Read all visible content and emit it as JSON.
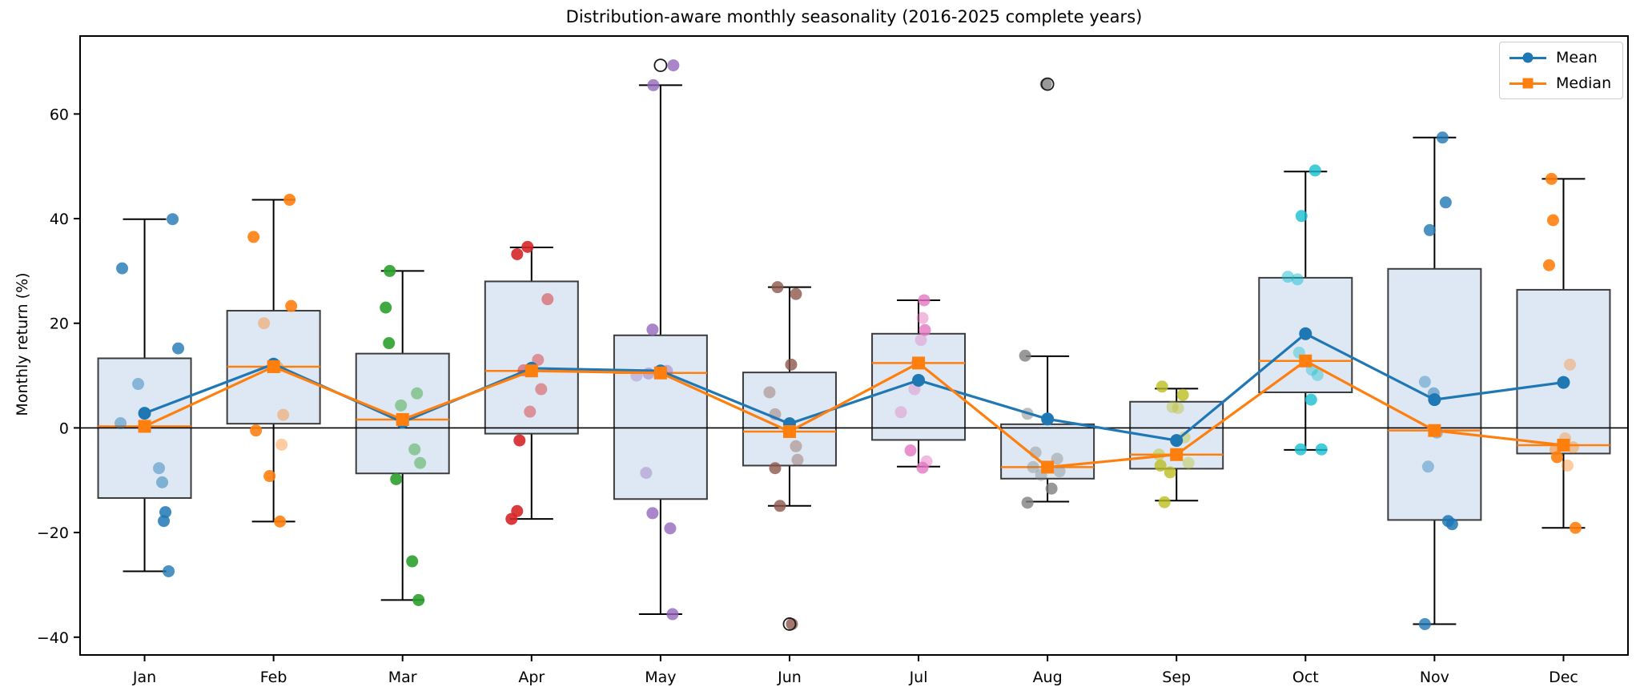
{
  "chart_data": {
    "type": "boxplot-with-line-overlays",
    "title": "Distribution-aware monthly seasonality (2016-2025 complete years)",
    "ylabel": "Monthly return (%)",
    "xlabel": "",
    "categories": [
      "Jan",
      "Feb",
      "Mar",
      "Apr",
      "May",
      "Jun",
      "Jul",
      "Aug",
      "Sep",
      "Oct",
      "Nov",
      "Dec"
    ],
    "yticks": [
      -40,
      -20,
      0,
      20,
      40,
      60
    ],
    "ylim": [
      -43.4,
      74.9
    ],
    "zero_line": 0,
    "grid": false,
    "legend_position": "upper right",
    "colors": {
      "mean": "#1f77b4",
      "median": "#ff7f0e",
      "box_fill": "#dde8f4",
      "box_edge": "#3c3c3c",
      "whisker": "#000000",
      "flier_edge": "#1a1a1a",
      "axis": "#000000",
      "month_points": [
        "#1f77b4",
        "#ff7f0e",
        "#2ca02c",
        "#d62728",
        "#9467bd",
        "#8c564b",
        "#e377c2",
        "#7f7f7f",
        "#bcbd22",
        "#17becf",
        "#1f77b4",
        "#ff7f0e"
      ]
    },
    "series": [
      {
        "name": "Mean",
        "marker": "circle",
        "color": "#1f77b4",
        "values": [
          2.8,
          12.2,
          1.1,
          11.4,
          10.9,
          0.8,
          9.1,
          1.7,
          -2.4,
          18.0,
          5.4,
          8.7
        ]
      },
      {
        "name": "Median",
        "marker": "square",
        "color": "#ff7f0e",
        "values": [
          0.3,
          11.7,
          1.6,
          10.9,
          10.5,
          -0.7,
          12.4,
          -7.5,
          -5.1,
          12.8,
          -0.5,
          -3.3
        ]
      }
    ],
    "boxes": [
      {
        "month": "Jan",
        "whislo": -27.4,
        "q1": -13.4,
        "med": 0.3,
        "q3": 13.3,
        "whishi": 39.9,
        "fliers": [],
        "points": [
          [
            35,
            39.9,
            0.8
          ],
          [
            -28,
            30.5,
            0.8
          ],
          [
            42,
            15.2,
            0.8
          ],
          [
            -8,
            8.4,
            0.45
          ],
          [
            -30,
            0.9,
            0.45
          ],
          [
            18,
            -7.7,
            0.45
          ],
          [
            22,
            -10.4,
            0.5
          ],
          [
            26,
            -16.1,
            0.85
          ],
          [
            24,
            -17.8,
            0.85
          ],
          [
            30,
            -27.4,
            0.8
          ]
        ]
      },
      {
        "month": "Feb",
        "whislo": -17.9,
        "q1": 0.8,
        "med": 11.7,
        "q3": 22.4,
        "whishi": 43.6,
        "fliers": [],
        "points": [
          [
            20,
            43.6,
            0.9
          ],
          [
            -25,
            36.5,
            0.9
          ],
          [
            22,
            23.3,
            0.9
          ],
          [
            -12,
            20.0,
            0.4
          ],
          [
            5,
            11.6,
            0.5
          ],
          [
            12,
            2.5,
            0.4
          ],
          [
            -22,
            -0.5,
            0.9
          ],
          [
            10,
            -3.2,
            0.4
          ],
          [
            -5,
            -9.2,
            0.9
          ],
          [
            8,
            -17.9,
            0.9
          ]
        ]
      },
      {
        "month": "Mar",
        "whislo": -32.9,
        "q1": -8.7,
        "med": 1.6,
        "q3": 14.2,
        "whishi": 30.0,
        "fliers": [],
        "points": [
          [
            -16,
            30.0,
            0.9
          ],
          [
            -21,
            23.0,
            0.9
          ],
          [
            -17,
            16.2,
            0.9
          ],
          [
            18,
            6.6,
            0.45
          ],
          [
            -2,
            4.3,
            0.45
          ],
          [
            15,
            -4.1,
            0.45
          ],
          [
            22,
            -6.7,
            0.45
          ],
          [
            -8,
            -9.8,
            0.9
          ],
          [
            12,
            -25.5,
            0.9
          ],
          [
            20,
            -32.9,
            0.9
          ]
        ]
      },
      {
        "month": "Apr",
        "whislo": -17.4,
        "q1": -1.1,
        "med": 10.9,
        "q3": 28.0,
        "whishi": 34.5,
        "fliers": [],
        "points": [
          [
            -5,
            34.6,
            0.9
          ],
          [
            -18,
            33.2,
            0.9
          ],
          [
            20,
            24.6,
            0.5
          ],
          [
            8,
            13.0,
            0.45
          ],
          [
            -10,
            11.0,
            0.5
          ],
          [
            12,
            7.4,
            0.45
          ],
          [
            -2,
            3.1,
            0.45
          ],
          [
            -15,
            -2.4,
            0.9
          ],
          [
            -18,
            -15.9,
            0.9
          ],
          [
            -25,
            -17.4,
            0.9
          ]
        ]
      },
      {
        "month": "May",
        "whislo": -35.6,
        "q1": -13.6,
        "med": 10.5,
        "q3": 17.7,
        "whishi": 65.5,
        "fliers": [
          69.3
        ],
        "points": [
          [
            16,
            69.3,
            0.8
          ],
          [
            -9,
            65.5,
            0.8
          ],
          [
            -10,
            18.8,
            0.8
          ],
          [
            8,
            10.9,
            0.45
          ],
          [
            -15,
            10.4,
            0.45
          ],
          [
            -30,
            10.0,
            0.35
          ],
          [
            -18,
            -8.6,
            0.4
          ],
          [
            -10,
            -16.3,
            0.8
          ],
          [
            12,
            -19.2,
            0.8
          ],
          [
            15,
            -35.6,
            0.8
          ]
        ]
      },
      {
        "month": "Jun",
        "whislo": -14.9,
        "q1": -7.2,
        "med": -0.7,
        "q3": 10.6,
        "whishi": 26.9,
        "fliers": [
          -37.5
        ],
        "points": [
          [
            -15,
            26.9,
            0.8
          ],
          [
            8,
            25.6,
            0.8
          ],
          [
            2,
            12.1,
            0.8
          ],
          [
            -25,
            6.8,
            0.4
          ],
          [
            -18,
            2.6,
            0.4
          ],
          [
            8,
            -3.5,
            0.4
          ],
          [
            10,
            -6.1,
            0.4
          ],
          [
            -18,
            -7.7,
            0.8
          ],
          [
            -12,
            -14.9,
            0.8
          ],
          [
            3,
            -37.5,
            0.8
          ]
        ]
      },
      {
        "month": "Jul",
        "whislo": -7.4,
        "q1": -2.3,
        "med": 12.4,
        "q3": 18.0,
        "whishi": 24.4,
        "fliers": [],
        "points": [
          [
            7,
            24.4,
            0.8
          ],
          [
            5,
            21.0,
            0.5
          ],
          [
            8,
            18.7,
            0.8
          ],
          [
            3,
            16.8,
            0.4
          ],
          [
            -2,
            12.4,
            0.5
          ],
          [
            -5,
            7.4,
            0.4
          ],
          [
            -22,
            3.0,
            0.4
          ],
          [
            -10,
            -4.3,
            0.8
          ],
          [
            10,
            -6.4,
            0.5
          ],
          [
            5,
            -7.6,
            0.8
          ]
        ]
      },
      {
        "month": "Aug",
        "whislo": -14.1,
        "q1": -9.7,
        "med": -7.5,
        "q3": 0.7,
        "whishi": 13.7,
        "fliers": [
          65.7
        ],
        "points": [
          [
            -2,
            65.7,
            0.8
          ],
          [
            -28,
            13.8,
            0.8
          ],
          [
            -25,
            2.7,
            0.5
          ],
          [
            -15,
            -4.7,
            0.4
          ],
          [
            12,
            -5.9,
            0.4
          ],
          [
            -18,
            -7.5,
            0.4
          ],
          [
            15,
            -8.3,
            0.4
          ],
          [
            -8,
            -9.0,
            0.4
          ],
          [
            5,
            -11.6,
            0.8
          ],
          [
            -25,
            -14.3,
            0.8
          ]
        ]
      },
      {
        "month": "Sep",
        "whislo": -13.9,
        "q1": -7.8,
        "med": -5.1,
        "q3": 5.0,
        "whishi": 7.5,
        "fliers": [],
        "points": [
          [
            -18,
            7.9,
            0.8
          ],
          [
            8,
            6.3,
            0.8
          ],
          [
            -5,
            4.0,
            0.4
          ],
          [
            2,
            3.8,
            0.4
          ],
          [
            10,
            -1.8,
            0.4
          ],
          [
            -22,
            -5.1,
            0.5
          ],
          [
            15,
            -6.7,
            0.4
          ],
          [
            -20,
            -7.2,
            0.8
          ],
          [
            -8,
            -8.5,
            0.8
          ],
          [
            -15,
            -14.2,
            0.8
          ]
        ]
      },
      {
        "month": "Oct",
        "whislo": -4.2,
        "q1": 6.8,
        "med": 12.8,
        "q3": 28.7,
        "whishi": 49.0,
        "fliers": [],
        "points": [
          [
            12,
            49.2,
            0.8
          ],
          [
            -5,
            40.5,
            0.8
          ],
          [
            -22,
            28.9,
            0.5
          ],
          [
            -10,
            28.4,
            0.5
          ],
          [
            -8,
            14.4,
            0.4
          ],
          [
            8,
            11.1,
            0.4
          ],
          [
            15,
            10.1,
            0.4
          ],
          [
            7,
            5.4,
            0.8
          ],
          [
            -6,
            -4.1,
            0.8
          ],
          [
            20,
            -4.1,
            0.8
          ]
        ]
      },
      {
        "month": "Nov",
        "whislo": -37.5,
        "q1": -17.6,
        "med": -0.5,
        "q3": 30.4,
        "whishi": 55.5,
        "fliers": [],
        "points": [
          [
            10,
            55.5,
            0.8
          ],
          [
            14,
            43.1,
            0.8
          ],
          [
            -6,
            37.8,
            0.8
          ],
          [
            -12,
            8.8,
            0.4
          ],
          [
            -1,
            6.6,
            0.5
          ],
          [
            3,
            -0.9,
            0.4
          ],
          [
            -8,
            -7.4,
            0.4
          ],
          [
            17,
            -17.8,
            0.85
          ],
          [
            22,
            -18.4,
            0.85
          ],
          [
            -12,
            -37.5,
            0.8
          ]
        ]
      },
      {
        "month": "Dec",
        "whislo": -19.1,
        "q1": -4.9,
        "med": -3.3,
        "q3": 26.4,
        "whishi": 47.6,
        "fliers": [],
        "points": [
          [
            -15,
            47.6,
            0.9
          ],
          [
            -13,
            39.7,
            0.9
          ],
          [
            -18,
            31.1,
            0.9
          ],
          [
            8,
            12.1,
            0.35
          ],
          [
            2,
            -2.0,
            0.35
          ],
          [
            12,
            -3.7,
            0.4
          ],
          [
            -10,
            -4.2,
            0.5
          ],
          [
            -8,
            -5.6,
            0.9
          ],
          [
            5,
            -7.2,
            0.4
          ],
          [
            15,
            -19.1,
            0.9
          ]
        ]
      }
    ]
  }
}
